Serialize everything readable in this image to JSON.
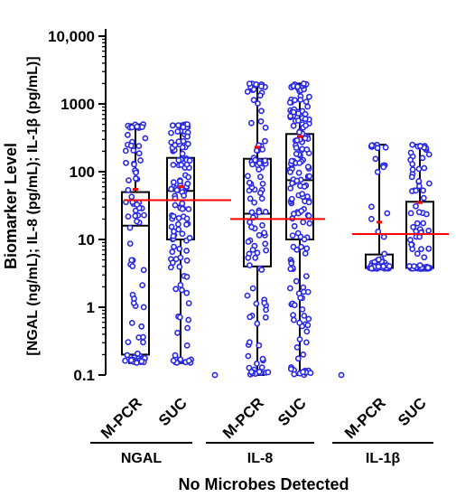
{
  "chart_data": {
    "type": "box-scatter",
    "title": "",
    "xlabel": "No Microbes Detected",
    "ylabel_line1": "Biomarker Level",
    "ylabel_line2": "[NGAL (ng/mL); IL-8 (pg/mL); IL-1β (pg/mL)]",
    "y_scale": "log",
    "ylim": [
      0.1,
      10000
    ],
    "y_ticks": [
      {
        "value": 0.1,
        "label": "0.1"
      },
      {
        "value": 1,
        "label": "1"
      },
      {
        "value": 10,
        "label": "10"
      },
      {
        "value": 100,
        "label": "100"
      },
      {
        "value": 1000,
        "label": "1000"
      },
      {
        "value": 10000,
        "label": "10,000"
      }
    ],
    "groups": [
      {
        "name": "NGAL",
        "threshold": 38,
        "boxes": [
          {
            "label": "M-PCR",
            "min": 0.15,
            "q1": 0.2,
            "median": 16,
            "q3": 50,
            "max": 500,
            "mean": 55,
            "n": 70
          },
          {
            "label": "SUC",
            "min": 0.15,
            "q1": 10,
            "median": 52,
            "q3": 160,
            "max": 500,
            "mean": 60,
            "n": 110
          }
        ]
      },
      {
        "name": "IL-8",
        "threshold": 20,
        "boxes": [
          {
            "label": "M-PCR",
            "min": 0.1,
            "q1": 4,
            "median": 24,
            "q3": 155,
            "max": 2000,
            "mean": 230,
            "n": 90
          },
          {
            "label": "SUC",
            "min": 0.1,
            "q1": 10,
            "median": 75,
            "q3": 360,
            "max": 2000,
            "mean": 330,
            "n": 160
          }
        ]
      },
      {
        "name": "IL-1β",
        "threshold": 12,
        "boxes": [
          {
            "label": "M-PCR",
            "min": 3.7,
            "q1": 3.8,
            "median": 3.9,
            "q3": 6,
            "max": 250,
            "mean": 18,
            "n": 45
          },
          {
            "label": "SUC",
            "min": 3.7,
            "q1": 3.8,
            "median": 3.9,
            "q3": 36,
            "max": 250,
            "mean": 35,
            "n": 90
          }
        ]
      }
    ],
    "colors": {
      "points": "#2a2ae6",
      "point_fill": "#ffffff",
      "threshold": "#ff0000",
      "mean_marker": "#ff0000",
      "axis": "#000000"
    }
  }
}
